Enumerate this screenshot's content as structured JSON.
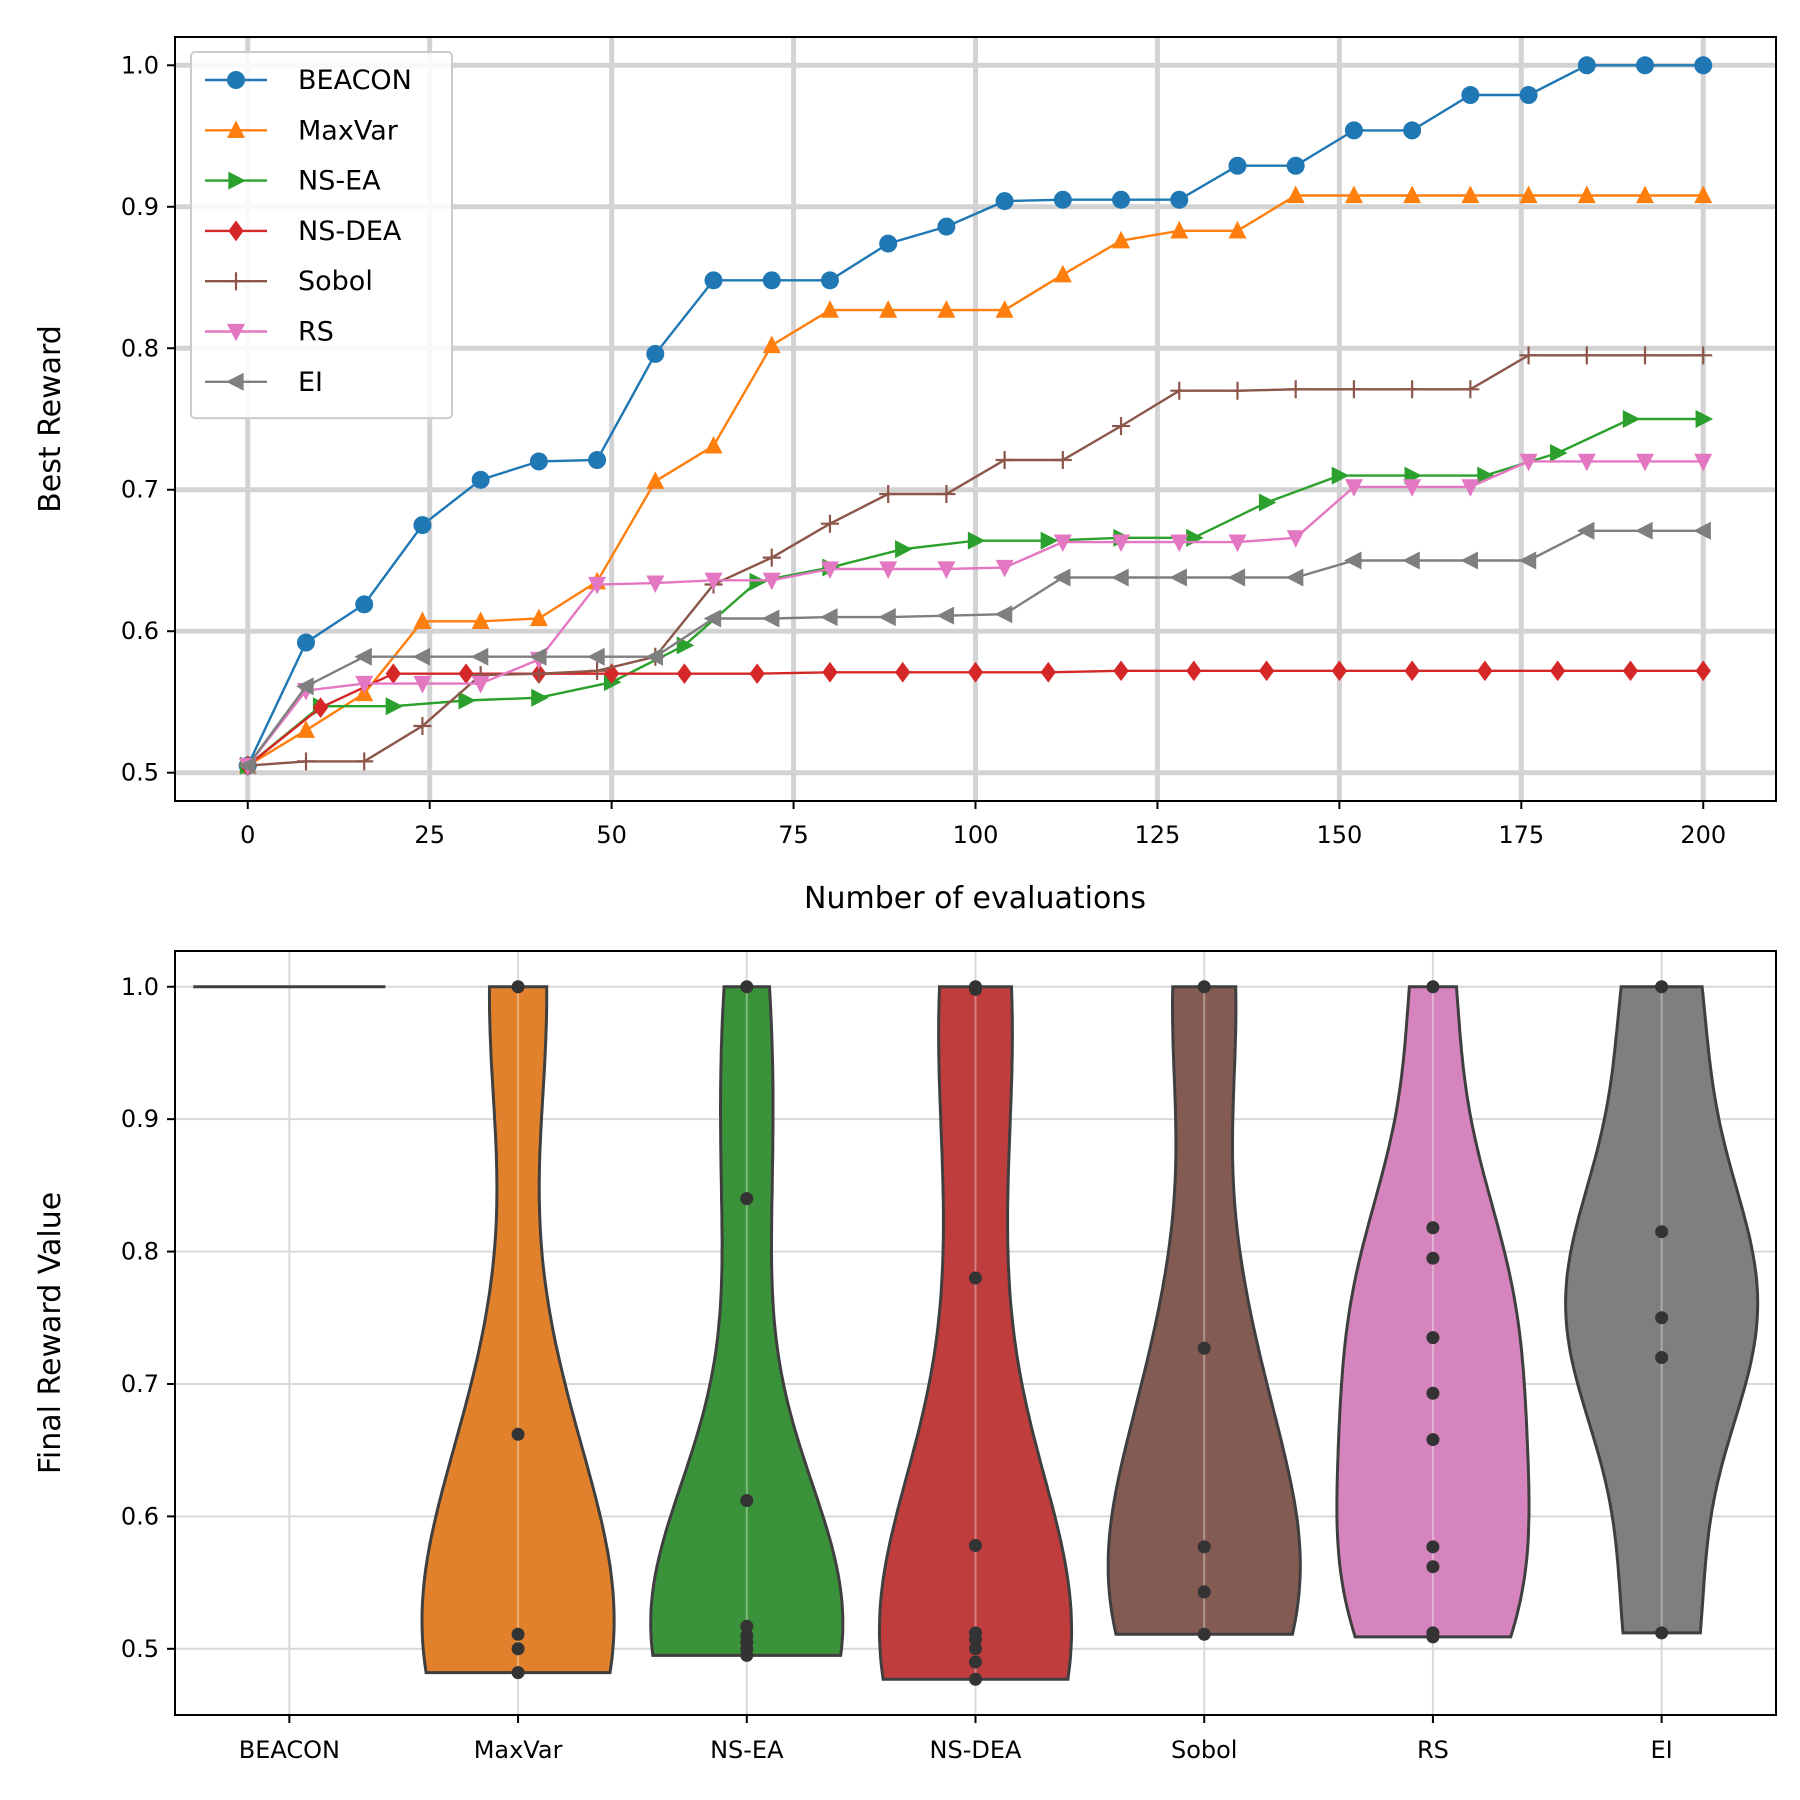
{
  "chart_data": [
    {
      "type": "line",
      "xlabel": "Number of evaluations",
      "ylabel": "Best Reward",
      "xlim": [
        -10,
        210
      ],
      "ylim": [
        0.48,
        1.02
      ],
      "xticks": [
        0,
        25,
        50,
        75,
        100,
        125,
        150,
        175,
        200
      ],
      "yticks": [
        0.5,
        0.6,
        0.7,
        0.8,
        0.9,
        1.0
      ],
      "grid": true,
      "legend_position": "upper-left",
      "x": [
        0,
        8,
        16,
        24,
        32,
        40,
        48,
        56,
        64,
        72,
        80,
        88,
        96,
        104,
        112,
        120,
        128,
        136,
        144,
        152,
        160,
        168,
        176,
        184,
        192,
        200
      ],
      "series": [
        {
          "name": "BEACON",
          "color": "#1f77b4",
          "marker": "circle",
          "values": [
            0.505,
            0.592,
            0.619,
            0.675,
            0.707,
            0.72,
            0.721,
            0.796,
            0.848,
            0.848,
            0.848,
            0.874,
            0.886,
            0.904,
            0.905,
            0.905,
            0.905,
            0.929,
            0.929,
            0.954,
            0.954,
            0.979,
            0.979,
            1.0,
            1.0,
            1.0
          ]
        },
        {
          "name": "MaxVar",
          "color": "#ff7f0e",
          "marker": "triangle-up",
          "values": [
            0.505,
            0.53,
            0.556,
            0.607,
            0.607,
            0.609,
            0.635,
            0.706,
            0.731,
            0.802,
            0.827,
            0.827,
            0.827,
            0.827,
            0.852,
            0.876,
            0.883,
            0.883,
            0.908,
            0.908,
            0.908,
            0.908,
            0.908,
            0.908,
            0.908,
            0.908
          ]
        },
        {
          "name": "NS-EA",
          "color": "#2ca02c",
          "marker": "triangle-right",
          "x": [
            0,
            10,
            20,
            30,
            40,
            50,
            60,
            70,
            80,
            90,
            100,
            110,
            120,
            130,
            140,
            150,
            160,
            170,
            180,
            190,
            200
          ],
          "values": [
            0.505,
            0.547,
            0.547,
            0.551,
            0.553,
            0.564,
            0.59,
            0.635,
            0.645,
            0.658,
            0.664,
            0.664,
            0.666,
            0.666,
            0.691,
            0.71,
            0.71,
            0.71,
            0.726,
            0.75,
            0.75
          ]
        },
        {
          "name": "NS-DEA",
          "color": "#d62728",
          "marker": "diamond",
          "x": [
            0,
            10,
            20,
            30,
            40,
            50,
            60,
            70,
            80,
            90,
            100,
            110,
            120,
            130,
            140,
            150,
            160,
            170,
            180,
            190,
            200
          ],
          "values": [
            0.505,
            0.546,
            0.57,
            0.57,
            0.57,
            0.57,
            0.57,
            0.57,
            0.571,
            0.571,
            0.571,
            0.571,
            0.572,
            0.572,
            0.572,
            0.572,
            0.572,
            0.572,
            0.572,
            0.572,
            0.572
          ]
        },
        {
          "name": "Sobol",
          "color": "#8c564b",
          "marker": "plus",
          "values": [
            0.505,
            0.508,
            0.508,
            0.533,
            0.569,
            0.57,
            0.572,
            0.582,
            0.633,
            0.652,
            0.676,
            0.697,
            0.697,
            0.721,
            0.721,
            0.745,
            0.77,
            0.77,
            0.771,
            0.771,
            0.771,
            0.771,
            0.795,
            0.795,
            0.795,
            0.795
          ]
        },
        {
          "name": "RS",
          "color": "#e377c2",
          "marker": "triangle-down",
          "values": [
            0.505,
            0.558,
            0.563,
            0.563,
            0.563,
            0.58,
            0.633,
            0.634,
            0.636,
            0.636,
            0.644,
            0.644,
            0.644,
            0.645,
            0.663,
            0.663,
            0.663,
            0.663,
            0.666,
            0.702,
            0.702,
            0.702,
            0.72,
            0.72,
            0.72,
            0.72
          ]
        },
        {
          "name": "EI",
          "color": "#7f7f7f",
          "marker": "triangle-left",
          "values": [
            0.505,
            0.561,
            0.582,
            0.582,
            0.582,
            0.582,
            0.582,
            0.582,
            0.609,
            0.609,
            0.61,
            0.61,
            0.611,
            0.612,
            0.638,
            0.638,
            0.638,
            0.638,
            0.638,
            0.65,
            0.65,
            0.65,
            0.65,
            0.671,
            0.671,
            0.671
          ]
        }
      ]
    },
    {
      "type": "violin",
      "ylabel": "Final Reward Value",
      "ylim": [
        0.45,
        1.027
      ],
      "yticks": [
        0.5,
        0.6,
        0.7,
        0.8,
        0.9,
        1.0
      ],
      "grid": true,
      "categories": [
        "BEACON",
        "MaxVar",
        "NS-EA",
        "NS-DEA",
        "Sobol",
        "RS",
        "EI"
      ],
      "colors": [
        "#1f77b4",
        "#e1812c",
        "#3a923a",
        "#c03d3e",
        "#845b53",
        "#d684bd",
        "#7f7f7f"
      ],
      "points": [
        [
          1.0,
          1.0,
          1.0,
          1.0,
          1.0,
          1.0,
          1.0,
          1.0,
          1.0,
          1.0
        ],
        [
          1.0,
          0.662,
          0.511,
          0.5,
          0.482
        ],
        [
          1.0,
          0.84,
          0.612,
          0.517,
          0.51,
          0.505,
          0.5,
          0.495
        ],
        [
          1.0,
          0.998,
          0.78,
          0.578,
          0.512,
          0.507,
          0.5,
          0.49,
          0.477
        ],
        [
          1.0,
          0.727,
          0.577,
          0.543,
          0.511
        ],
        [
          1.0,
          0.818,
          0.795,
          0.735,
          0.693,
          0.658,
          0.577,
          0.562,
          0.512,
          0.509
        ],
        [
          1.0,
          0.815,
          0.75,
          0.72,
          0.512
        ]
      ]
    }
  ]
}
